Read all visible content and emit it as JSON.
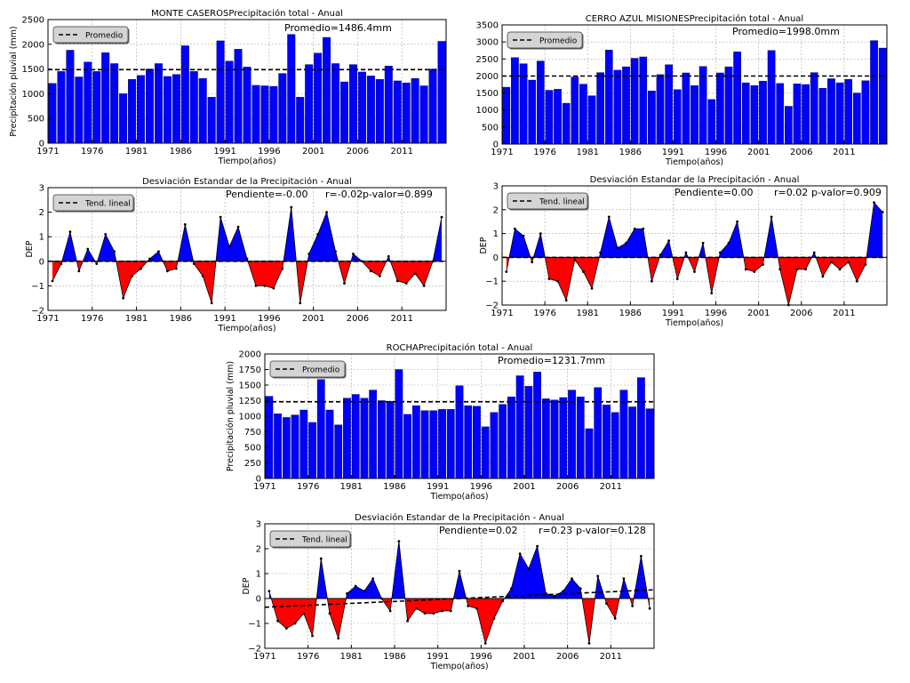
{
  "chart_data": [
    {
      "id": "mc_precip",
      "type": "bar",
      "title": "MONTE CASEROSPrecipitación total - Anual",
      "xlabel": "Tiempo(años)",
      "ylabel": "Precipitación pluvial (mm)",
      "ylim": [
        0,
        2500
      ],
      "yticks": [
        0,
        500,
        1000,
        1500,
        2000,
        2500
      ],
      "xticks": [
        1971,
        1976,
        1981,
        1986,
        1991,
        1996,
        2001,
        2006,
        2011
      ],
      "legend": {
        "label": "Promedio",
        "position": "top-left"
      },
      "annotation": "Promedio=1486.4mm",
      "mean": 1486.4,
      "start_year": 1971,
      "bar_color": "#0000ff",
      "grid": true,
      "values": [
        1210,
        1450,
        1880,
        1340,
        1640,
        1450,
        1830,
        1610,
        1000,
        1290,
        1370,
        1500,
        1610,
        1350,
        1390,
        1970,
        1450,
        1310,
        930,
        2070,
        1660,
        1900,
        1540,
        1170,
        1160,
        1150,
        1410,
        2200,
        930,
        1590,
        1820,
        2140,
        1610,
        1240,
        1590,
        1440,
        1360,
        1290,
        1560,
        1260,
        1220,
        1310,
        1160,
        1500,
        2060
      ]
    },
    {
      "id": "mc_dev",
      "type": "area",
      "title": "Desviación Estandar de la Precipitación - Anual",
      "xlabel": "Tiempo(años)",
      "ylabel": "DEP",
      "ylim": [
        -2,
        3
      ],
      "yticks": [
        -2,
        -1,
        0,
        1,
        2,
        3
      ],
      "xticks": [
        1971,
        1976,
        1981,
        1986,
        1991,
        1996,
        2001,
        2006,
        2011
      ],
      "legend": {
        "label": "Tend. lineal",
        "position": "top-left"
      },
      "stats": {
        "slope": "Pendiente=-0.00",
        "r": "r=-0.02",
        "p": "p-valor=0.899"
      },
      "trend": [
        0.0,
        0.0
      ],
      "start_year": 1971,
      "pos_color": "#0000ff",
      "neg_color": "#ff0000",
      "grid": true,
      "values": [
        -0.8,
        -0.1,
        1.2,
        -0.4,
        0.5,
        -0.1,
        1.1,
        0.4,
        -1.5,
        -0.6,
        -0.3,
        0.1,
        0.4,
        -0.4,
        -0.3,
        1.5,
        -0.1,
        -0.6,
        -1.7,
        1.8,
        0.6,
        1.4,
        0.1,
        -1.0,
        -1.0,
        -1.1,
        -0.3,
        2.2,
        -1.7,
        0.3,
        1.1,
        2.0,
        0.4,
        -0.9,
        0.3,
        0.0,
        -0.4,
        -0.6,
        0.2,
        -0.8,
        -0.9,
        -0.5,
        -1.0,
        0.0,
        1.8
      ]
    },
    {
      "id": "ca_precip",
      "type": "bar",
      "title": "CERRO AZUL MISIONESPrecipitación total - Anual",
      "xlabel": "Tiempo(años)",
      "ylabel": "",
      "ylim": [
        0,
        3500
      ],
      "yticks": [
        0,
        500,
        1000,
        1500,
        2000,
        2500,
        3000,
        3500
      ],
      "xticks": [
        1971,
        1976,
        1981,
        1986,
        1991,
        1996,
        2001,
        2006,
        2011
      ],
      "legend": {
        "label": "Promedio",
        "position": "top-left"
      },
      "annotation": "Promedio=1998.0mm",
      "mean": 1998.0,
      "start_year": 1971,
      "bar_color": "#0000ff",
      "grid": true,
      "values": [
        1670,
        2540,
        2360,
        1880,
        2440,
        1580,
        1610,
        1200,
        1970,
        1760,
        1420,
        2100,
        2760,
        2170,
        2270,
        2520,
        2560,
        1560,
        2040,
        2330,
        1600,
        2090,
        1720,
        2280,
        1310,
        2090,
        2270,
        2710,
        1800,
        1720,
        1850,
        2750,
        1780,
        1110,
        1770,
        1750,
        2100,
        1640,
        1920,
        1800,
        1900,
        1500,
        1860,
        3040,
        2820
      ]
    },
    {
      "id": "ca_dev",
      "type": "area",
      "title": "Desviación Estandar de la Precipitación - Anual",
      "xlabel": "Tiempo(años)",
      "ylabel": "DEP",
      "ylim": [
        -2,
        3
      ],
      "yticks": [
        -2,
        -1,
        0,
        1,
        2,
        3
      ],
      "xticks": [
        1971,
        1976,
        1981,
        1986,
        1991,
        1996,
        2001,
        2006,
        2011
      ],
      "legend": {
        "label": "Tend. lineal",
        "position": "top-left"
      },
      "stats": {
        "slope": "Pendiente=0.00",
        "r": "r=0.02",
        "p": "p-valor=0.909"
      },
      "trend": [
        0.0,
        0.0
      ],
      "start_year": 1971,
      "pos_color": "#0000ff",
      "neg_color": "#ff0000",
      "grid": true,
      "values": [
        -0.6,
        1.2,
        0.9,
        -0.2,
        1.0,
        -0.9,
        -1.0,
        -1.8,
        -0.1,
        -0.6,
        -1.3,
        0.2,
        1.7,
        0.4,
        0.6,
        1.2,
        1.2,
        -1.0,
        0.1,
        0.7,
        -0.9,
        0.2,
        -0.6,
        0.6,
        -1.5,
        0.2,
        0.6,
        1.5,
        -0.5,
        -0.6,
        -0.3,
        1.7,
        -0.5,
        -2.0,
        -0.5,
        -0.5,
        0.2,
        -0.8,
        -0.2,
        -0.5,
        -0.2,
        -1.0,
        -0.3,
        2.3,
        1.9
      ]
    },
    {
      "id": "ro_precip",
      "type": "bar",
      "title": "ROCHAPrecipitación total - Anual",
      "xlabel": "Tiempo(años)",
      "ylabel": "Precipitación pluvial (mm)",
      "ylim": [
        0,
        2000
      ],
      "yticks": [
        0,
        250,
        500,
        750,
        1000,
        1250,
        1500,
        1750,
        2000
      ],
      "xticks": [
        1971,
        1976,
        1981,
        1986,
        1991,
        1996,
        2001,
        2006,
        2011
      ],
      "legend": {
        "label": "Promedio",
        "position": "top-left"
      },
      "annotation": "Promedio=1231.7mm",
      "mean": 1231.7,
      "start_year": 1971,
      "bar_color": "#0000ff",
      "grid": true,
      "values": [
        1320,
        1040,
        980,
        1020,
        1100,
        900,
        1590,
        1100,
        860,
        1290,
        1350,
        1290,
        1420,
        1250,
        1240,
        1750,
        1030,
        1170,
        1090,
        1090,
        1110,
        1110,
        1490,
        1170,
        1160,
        830,
        1060,
        1190,
        1310,
        1650,
        1480,
        1710,
        1280,
        1260,
        1300,
        1420,
        1310,
        800,
        1460,
        1180,
        1060,
        1420,
        1150,
        1620,
        1120
      ]
    },
    {
      "id": "ro_dev",
      "type": "area",
      "title": "Desviación Estandar de la Precipitación - Anual",
      "xlabel": "Tiempo(años)",
      "ylabel": "DEP",
      "ylim": [
        -2,
        3
      ],
      "yticks": [
        -2,
        -1,
        0,
        1,
        2,
        3
      ],
      "xticks": [
        1971,
        1976,
        1981,
        1986,
        1991,
        1996,
        2001,
        2006,
        2011
      ],
      "legend": {
        "label": "Tend. lineal",
        "position": "top-left"
      },
      "stats": {
        "slope": "Pendiente=0.02",
        "r": "r=0.23",
        "p": "p-valor=0.128"
      },
      "trend": [
        -0.35,
        0.35
      ],
      "start_year": 1971,
      "pos_color": "#0000ff",
      "neg_color": "#ff0000",
      "grid": true,
      "values": [
        0.3,
        -0.9,
        -1.2,
        -1.0,
        -0.6,
        -1.5,
        1.6,
        -0.6,
        -1.6,
        0.2,
        0.5,
        0.3,
        0.8,
        0.0,
        -0.5,
        2.3,
        -0.9,
        -0.4,
        -0.6,
        -0.6,
        -0.5,
        -0.5,
        1.1,
        -0.3,
        -0.4,
        -1.8,
        -0.8,
        -0.1,
        0.4,
        1.8,
        1.2,
        2.1,
        0.2,
        0.1,
        0.3,
        0.8,
        0.4,
        -1.8,
        0.9,
        -0.2,
        -0.8,
        0.8,
        -0.3,
        1.7,
        -0.4
      ]
    }
  ]
}
